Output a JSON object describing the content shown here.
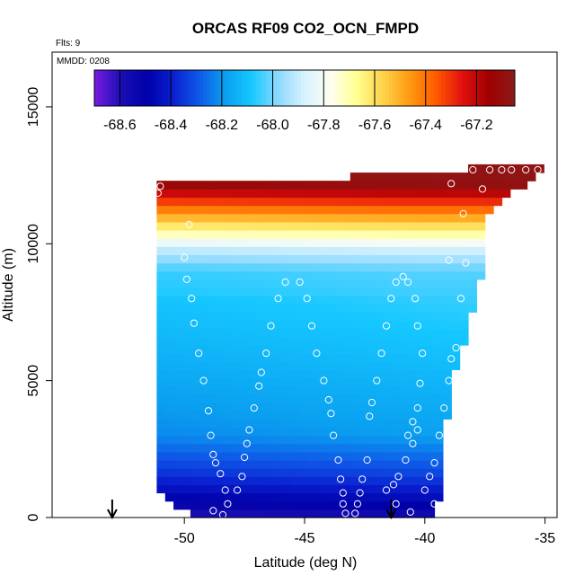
{
  "chart_data": {
    "type": "heatmap",
    "title": "ORCAS RF09 CO2_OCN_FMPD",
    "subtitle": "Flts: 9",
    "annotation": "MMDD: 0208",
    "xlabel": "Latitude (deg N)",
    "ylabel": "Altitude (m)",
    "xlim": [
      -55.5,
      -34.5
    ],
    "ylim": [
      0,
      17000
    ],
    "x_ticks": [
      -50,
      -45,
      -40,
      -35
    ],
    "x_tick_labels": [
      "-50",
      "-45",
      "-40",
      "-35"
    ],
    "y_ticks": [
      0,
      5000,
      10000,
      15000
    ],
    "y_tick_labels": [
      "0",
      "5000",
      "10000",
      "15000"
    ],
    "colorbar": {
      "ticks": [
        -68.6,
        -68.4,
        -68.2,
        -68.0,
        -67.8,
        -67.6,
        -67.4,
        -67.2
      ],
      "tick_labels": [
        "-68.6",
        "-68.4",
        "-68.2",
        "-68.0",
        "-67.8",
        "-67.6",
        "-67.4",
        "-67.2"
      ],
      "range": [
        -68.7,
        -67.05
      ],
      "colors": [
        "#7a1be0",
        "#1a0fb5",
        "#0000a8",
        "#0a1fd0",
        "#0f5ae8",
        "#0aa0f0",
        "#16c8ff",
        "#8edaff",
        "#d8f2ff",
        "#fffff0",
        "#ffff90",
        "#ffd24a",
        "#ff9a10",
        "#ff5a00",
        "#e21010",
        "#a00000",
        "#8b1a1a"
      ]
    },
    "data_extent": {
      "left_edge": [
        [
          -53.2,
          3100
        ],
        [
          -52.3,
          9200
        ],
        [
          -51.2,
          12100
        ]
      ],
      "right_edge": [
        [
          -39.5,
          0
        ],
        [
          -38.9,
          5000
        ],
        [
          -37.8,
          8000
        ],
        [
          -37.2,
          11000
        ],
        [
          -35.0,
          12700
        ]
      ],
      "top_edge": [
        [
          -51.2,
          12200
        ],
        [
          -46.0,
          12400
        ],
        [
          -40.0,
          12500
        ],
        [
          -38.0,
          12800
        ],
        [
          -35.0,
          12800
        ]
      ],
      "bottom_edge": [
        [
          -48.8,
          0
        ],
        [
          -39.4,
          0
        ]
      ]
    },
    "field_levels": [
      {
        "alt": 12200,
        "value": -67.1
      },
      {
        "alt": 11600,
        "value": -67.3
      },
      {
        "alt": 11000,
        "value": -67.5
      },
      {
        "alt": 10400,
        "value": -67.7
      },
      {
        "alt": 9800,
        "value": -67.9
      },
      {
        "alt": 9000,
        "value": -68.05
      },
      {
        "alt": 6000,
        "value": -68.12
      },
      {
        "alt": 3000,
        "value": -68.2
      },
      {
        "alt": 1500,
        "value": -68.35
      },
      {
        "alt": 500,
        "value": -68.5
      },
      {
        "alt": 0,
        "value": -68.6
      }
    ],
    "flight_markers_lat": [
      -53.0,
      -41.4
    ],
    "observation_points": [
      {
        "x": -51.0,
        "y": 12100
      },
      {
        "x": -51.1,
        "y": 11850
      },
      {
        "x": -49.8,
        "y": 10700
      },
      {
        "x": -50.0,
        "y": 9500
      },
      {
        "x": -52.2,
        "y": 9200
      },
      {
        "x": -52.6,
        "y": 8000
      },
      {
        "x": -49.9,
        "y": 8700
      },
      {
        "x": -49.7,
        "y": 8000
      },
      {
        "x": -52.8,
        "y": 7000
      },
      {
        "x": -49.6,
        "y": 7100
      },
      {
        "x": -53.1,
        "y": 6000
      },
      {
        "x": -49.4,
        "y": 6000
      },
      {
        "x": -53.3,
        "y": 5000
      },
      {
        "x": -49.2,
        "y": 5000
      },
      {
        "x": -53.4,
        "y": 4000
      },
      {
        "x": -49.0,
        "y": 3900
      },
      {
        "x": -53.2,
        "y": 3200
      },
      {
        "x": -48.9,
        "y": 3000
      },
      {
        "x": -48.8,
        "y": 2300
      },
      {
        "x": -48.7,
        "y": 2000
      },
      {
        "x": -48.5,
        "y": 1600
      },
      {
        "x": -48.3,
        "y": 1000
      },
      {
        "x": -48.2,
        "y": 500
      },
      {
        "x": -48.4,
        "y": 100
      },
      {
        "x": -48.8,
        "y": 250
      },
      {
        "x": -47.8,
        "y": 1000
      },
      {
        "x": -47.6,
        "y": 1500
      },
      {
        "x": -47.5,
        "y": 2200
      },
      {
        "x": -47.4,
        "y": 2700
      },
      {
        "x": -47.3,
        "y": 3200
      },
      {
        "x": -47.1,
        "y": 4000
      },
      {
        "x": -46.9,
        "y": 4800
      },
      {
        "x": -46.8,
        "y": 5300
      },
      {
        "x": -46.6,
        "y": 6000
      },
      {
        "x": -46.4,
        "y": 7000
      },
      {
        "x": -46.1,
        "y": 8000
      },
      {
        "x": -45.8,
        "y": 8600
      },
      {
        "x": -45.2,
        "y": 8600
      },
      {
        "x": -44.9,
        "y": 8000
      },
      {
        "x": -44.7,
        "y": 7000
      },
      {
        "x": -44.5,
        "y": 6000
      },
      {
        "x": -44.2,
        "y": 5000
      },
      {
        "x": -44.0,
        "y": 4300
      },
      {
        "x": -43.9,
        "y": 3800
      },
      {
        "x": -43.8,
        "y": 3000
      },
      {
        "x": -43.6,
        "y": 2100
      },
      {
        "x": -43.5,
        "y": 1400
      },
      {
        "x": -43.4,
        "y": 900
      },
      {
        "x": -43.4,
        "y": 500
      },
      {
        "x": -43.3,
        "y": 150
      },
      {
        "x": -42.9,
        "y": 150
      },
      {
        "x": -42.8,
        "y": 500
      },
      {
        "x": -42.7,
        "y": 900
      },
      {
        "x": -42.6,
        "y": 1400
      },
      {
        "x": -42.4,
        "y": 2100
      },
      {
        "x": -42.3,
        "y": 3700
      },
      {
        "x": -42.2,
        "y": 4200
      },
      {
        "x": -42.0,
        "y": 5000
      },
      {
        "x": -41.8,
        "y": 6000
      },
      {
        "x": -41.6,
        "y": 7000
      },
      {
        "x": -41.4,
        "y": 8000
      },
      {
        "x": -41.2,
        "y": 8600
      },
      {
        "x": -40.9,
        "y": 8800
      },
      {
        "x": -40.7,
        "y": 8600
      },
      {
        "x": -40.4,
        "y": 8000
      },
      {
        "x": -40.3,
        "y": 7000
      },
      {
        "x": -40.1,
        "y": 6000
      },
      {
        "x": -40.2,
        "y": 4900
      },
      {
        "x": -40.3,
        "y": 4000
      },
      {
        "x": -40.5,
        "y": 3500
      },
      {
        "x": -40.7,
        "y": 3000
      },
      {
        "x": -40.8,
        "y": 2100
      },
      {
        "x": -41.1,
        "y": 1500
      },
      {
        "x": -41.3,
        "y": 1200
      },
      {
        "x": -41.6,
        "y": 1000
      },
      {
        "x": -41.2,
        "y": 500
      },
      {
        "x": -40.6,
        "y": 200
      },
      {
        "x": -39.4,
        "y": 100
      },
      {
        "x": -40.5,
        "y": 2700
      },
      {
        "x": -40.3,
        "y": 3200
      },
      {
        "x": -40.0,
        "y": 1000
      },
      {
        "x": -39.8,
        "y": 1500
      },
      {
        "x": -39.6,
        "y": 2000
      },
      {
        "x": -39.4,
        "y": 3000
      },
      {
        "x": -39.2,
        "y": 4000
      },
      {
        "x": -39.0,
        "y": 5000
      },
      {
        "x": -38.9,
        "y": 5800
      },
      {
        "x": -38.7,
        "y": 6200
      },
      {
        "x": -38.5,
        "y": 8000
      },
      {
        "x": -38.3,
        "y": 9300
      },
      {
        "x": -39.0,
        "y": 9400
      },
      {
        "x": -38.4,
        "y": 11100
      },
      {
        "x": -38.9,
        "y": 12200
      },
      {
        "x": -38.0,
        "y": 12700
      },
      {
        "x": -37.3,
        "y": 12700
      },
      {
        "x": -36.8,
        "y": 12700
      },
      {
        "x": -36.4,
        "y": 12700
      },
      {
        "x": -35.8,
        "y": 12700
      },
      {
        "x": -35.3,
        "y": 12700
      },
      {
        "x": -37.6,
        "y": 12000
      },
      {
        "x": -38.6,
        "y": 500
      },
      {
        "x": -39.6,
        "y": 500
      }
    ]
  }
}
